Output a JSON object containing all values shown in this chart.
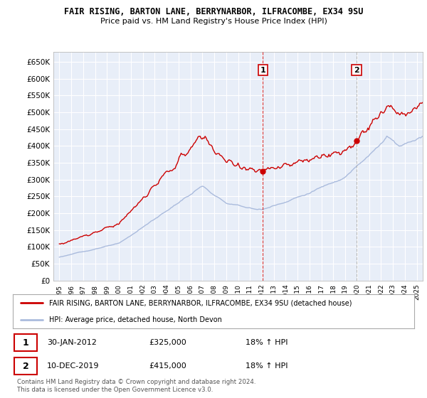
{
  "title": "FAIR RISING, BARTON LANE, BERRYNARBOR, ILFRACOMBE, EX34 9SU",
  "subtitle": "Price paid vs. HM Land Registry's House Price Index (HPI)",
  "ylabel_ticks": [
    "£0",
    "£50K",
    "£100K",
    "£150K",
    "£200K",
    "£250K",
    "£300K",
    "£350K",
    "£400K",
    "£450K",
    "£500K",
    "£550K",
    "£600K",
    "£650K"
  ],
  "ytick_values": [
    0,
    50000,
    100000,
    150000,
    200000,
    250000,
    300000,
    350000,
    400000,
    450000,
    500000,
    550000,
    600000,
    650000
  ],
  "ylim": [
    0,
    680000
  ],
  "xlim_start": 1994.5,
  "xlim_end": 2025.5,
  "hpi_color": "#aabbdd",
  "price_color": "#cc0000",
  "background_color": "#e8eef8",
  "plot_bg_color": "#e8eef8",
  "grid_color": "#ffffff",
  "sale1_x": 2012.08,
  "sale1_y": 325000,
  "sale1_label": "1",
  "sale2_x": 2019.94,
  "sale2_y": 415000,
  "sale2_label": "2",
  "sale1_date": "30-JAN-2012",
  "sale1_price": "£325,000",
  "sale1_hpi": "18% ↑ HPI",
  "sale2_date": "10-DEC-2019",
  "sale2_price": "£415,000",
  "sale2_hpi": "18% ↑ HPI",
  "legend_line1": "FAIR RISING, BARTON LANE, BERRYNARBOR, ILFRACOMBE, EX34 9SU (detached house)",
  "legend_line2": "HPI: Average price, detached house, North Devon",
  "footer": "Contains HM Land Registry data © Crown copyright and database right 2024.\nThis data is licensed under the Open Government Licence v3.0.",
  "xticks": [
    1995,
    1996,
    1997,
    1998,
    1999,
    2000,
    2001,
    2002,
    2003,
    2004,
    2005,
    2006,
    2007,
    2008,
    2009,
    2010,
    2011,
    2012,
    2013,
    2014,
    2015,
    2016,
    2017,
    2018,
    2019,
    2020,
    2021,
    2022,
    2023,
    2024,
    2025
  ]
}
